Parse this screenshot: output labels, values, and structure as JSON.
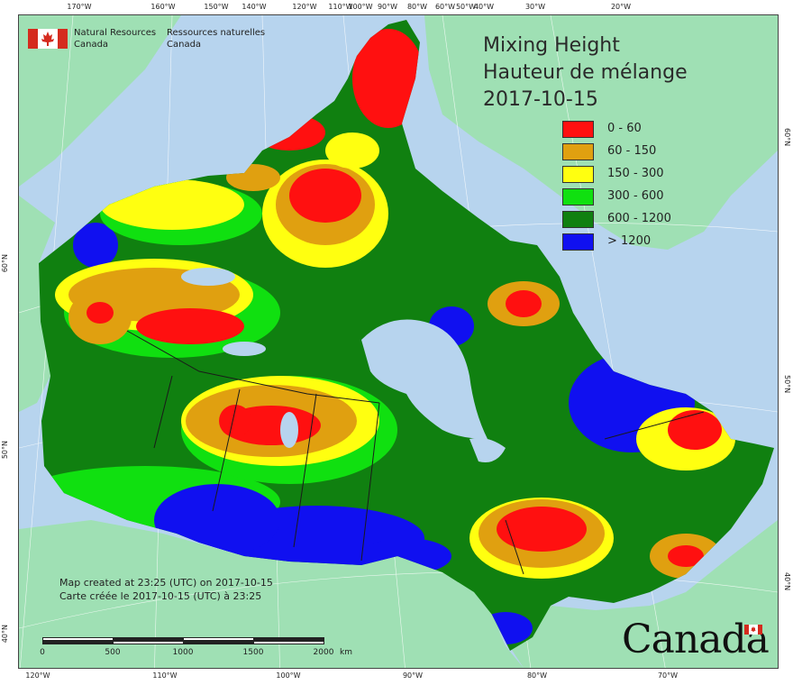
{
  "agency": {
    "english_lines": [
      "Natural Resources",
      "Canada"
    ],
    "french_lines": [
      "Ressources naturelles",
      "Canada"
    ]
  },
  "title": {
    "line1": "Mixing Height",
    "line2": "Hauteur de mélange",
    "date": "2017-10-15"
  },
  "legend": [
    {
      "label": "0 - 60",
      "color": "#ff1010"
    },
    {
      "label": "60 - 150",
      "color": "#e0a010"
    },
    {
      "label": "150 - 300",
      "color": "#ffff10"
    },
    {
      "label": "300 - 600",
      "color": "#10e010"
    },
    {
      "label": "600 - 1200",
      "color": "#108010"
    },
    {
      "label": "> 1200",
      "color": "#1010f0"
    }
  ],
  "credit": {
    "english": "Map created at 23:25 (UTC) on 2017-10-15",
    "french": "Carte créée le 2017-10-15 (UTC) à 23:25"
  },
  "scale_bar": {
    "labels": [
      "0",
      "500",
      "1000",
      "1500",
      "2000"
    ],
    "unit": "km"
  },
  "axes": {
    "top": [
      "170°W",
      "160°W",
      "150°W",
      "140°W",
      "120°W",
      "110°W",
      "100°W",
      "90°W",
      "80°W",
      "60°W",
      "50°W",
      "40°W",
      "30°W",
      "20°W"
    ],
    "bottom": [
      "120°W",
      "110°W",
      "100°W",
      "90°W",
      "80°W",
      "70°W"
    ],
    "left": [
      "60°N",
      "50°N",
      "40°N"
    ],
    "right": [
      "60°N",
      "50°N",
      "40°N"
    ]
  },
  "wordmark": "Canada",
  "colors": {
    "water": "#b7d4ee",
    "land_outside": "#9fe0b4",
    "boundary": "#1a1a1a"
  }
}
